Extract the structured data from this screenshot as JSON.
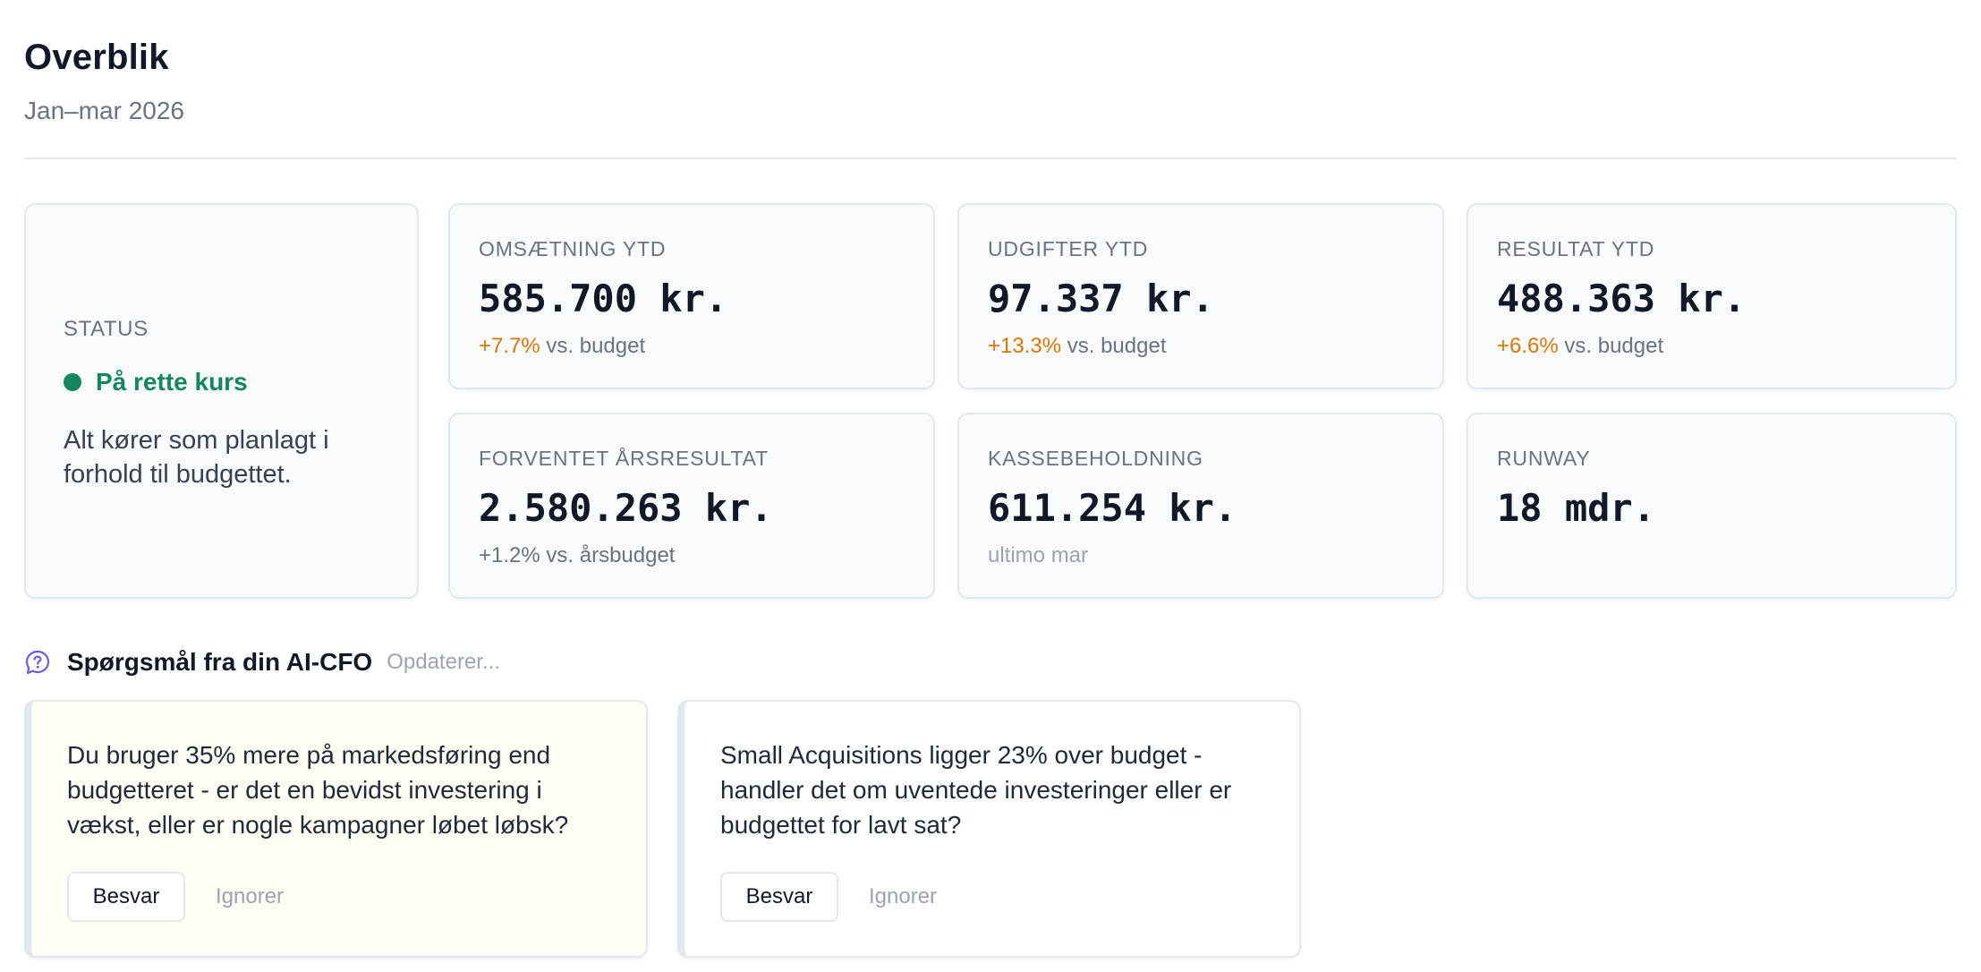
{
  "header": {
    "title": "Overblik",
    "period": "Jan–mar 2026"
  },
  "status": {
    "label": "STATUS",
    "value": "På rette kurs",
    "description": "Alt kører som planlagt i forhold til budgettet.",
    "color": "#14875e"
  },
  "metrics": [
    {
      "label": "OMSÆTNING YTD",
      "value": "585.700 kr.",
      "delta": "+7.7%",
      "suffix": "vs. budget"
    },
    {
      "label": "UDGIFTER YTD",
      "value": "97.337 kr.",
      "delta": "+13.3%",
      "suffix": "vs. budget"
    },
    {
      "label": "RESULTAT YTD",
      "value": "488.363 kr.",
      "delta": "+6.6%",
      "suffix": "vs. budget"
    },
    {
      "label": "FORVENTET ÅRSRESULTAT",
      "value": "2.580.263 kr.",
      "delta": "+1.2%",
      "suffix": "vs. årsbudget"
    },
    {
      "label": "KASSEBEHOLDNING",
      "value": "611.254 kr.",
      "note": "ultimo mar"
    },
    {
      "label": "RUNWAY",
      "value": "18 mdr."
    }
  ],
  "questions": {
    "icon": "question-bubble-icon",
    "title": "Spørgsmål fra din AI-CFO",
    "status": "Opdaterer...",
    "items": [
      {
        "text": "Du bruger 35% mere på markedsføring end budgetteret - er det en bevidst investering i vækst, eller er nogle kampagner løbet løbsk?",
        "answer_label": "Besvar",
        "ignore_label": "Ignorer"
      },
      {
        "text": "Small Acquisitions ligger 23% over budget - handler det om uventede investeringer eller er budgettet for lavt sat?",
        "answer_label": "Besvar",
        "ignore_label": "Ignorer"
      }
    ]
  },
  "colors": {
    "accent_orange": "#d97706",
    "status_green": "#14875e",
    "icon_purple": "#6d5ce7",
    "highlight_card_bg": "#fffef5"
  }
}
